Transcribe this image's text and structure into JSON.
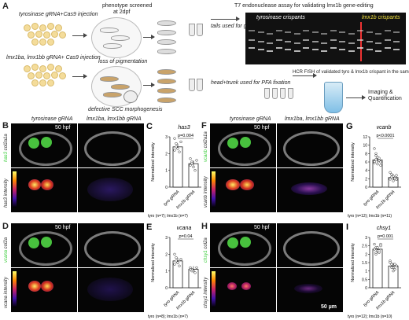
{
  "panel_A": {
    "letter": "A",
    "inj1": "tyrosinase gRNA+Cas9 injection",
    "inj2": "lmx1ba, lmx1bb gRNA+ Cas9 injection",
    "screen_line1": "phenotype screened",
    "screen_line2": "at 2dpf",
    "loss": "loss of pigmentation",
    "defective": "defective SCC morphogenesis",
    "t7": "T7 endonuclease assay for validating lmx1b gene-editing",
    "tails": "tails used for genomic DNA extraction",
    "head": "head+trunk used for PFA fixation",
    "gel_tyro": "tyrosinase crispants",
    "gel_lmx": "lmx1b crispants",
    "hcr": "HCR FISH of validated tyro & lmx1b crispant in the same tube",
    "imaging": "Imaging & Quantification"
  },
  "col_headers": {
    "tyro": "tyrosinase gRNA",
    "lmx": "lmx1ba, lmx1bb gRNA"
  },
  "hpf": "50 hpf",
  "scale_bar": "50 µm",
  "intensity_high": "High",
  "intensity_low": "Low",
  "image_panels": [
    {
      "letter": "B",
      "marker": "has3",
      "counter": "col2a1a",
      "ylabel": "has3 intensity"
    },
    {
      "letter": "D",
      "marker": "vcana",
      "counter": "col2a",
      "ylabel": "vcana intensity"
    },
    {
      "letter": "F",
      "marker": "vcanb",
      "counter": "col2a1a",
      "ylabel": "vcanb intensity"
    },
    {
      "letter": "H",
      "marker": "chsy1",
      "counter": "col2a",
      "ylabel": "chsy1 intensity"
    }
  ],
  "chart_data": [
    {
      "panel": "C",
      "type": "bar",
      "title": "has3",
      "ylabel": "Normalized intensity",
      "ylim": [
        0,
        3
      ],
      "yticks": [
        0,
        1,
        2,
        3
      ],
      "categories": [
        "tyro gRNA",
        "lmx1b gRNA"
      ],
      "values": [
        2.4,
        1.4
      ],
      "pvalue": "p=0.004",
      "points": [
        [
          2.9,
          2.6,
          2.3,
          2.1,
          2.7,
          2.2,
          2.4
        ],
        [
          1.7,
          1.5,
          1.2,
          1.0,
          1.6,
          1.3,
          1.4
        ]
      ],
      "n_note": "tyro (n=7); lmx1b (n=7)"
    },
    {
      "panel": "E",
      "type": "bar",
      "title": "vcana",
      "ylabel": "Normalized intensity",
      "ylim": [
        0,
        3
      ],
      "yticks": [
        0,
        1,
        2,
        3
      ],
      "categories": [
        "tyro gRNA",
        "lmx1b gRNA"
      ],
      "values": [
        1.6,
        1.1
      ],
      "pvalue": "p=0.04",
      "points": [
        [
          2.0,
          1.8,
          1.5,
          1.3,
          1.7,
          1.4,
          1.6,
          1.5
        ],
        [
          1.2,
          1.1,
          1.0,
          0.9,
          1.2,
          1.1,
          1.0
        ]
      ],
      "n_note": "tyro (n=8); lmx1b (n=7)"
    },
    {
      "panel": "G",
      "type": "bar",
      "title": "vcanb",
      "ylabel": "Normalized intensity",
      "ylim": [
        0,
        12
      ],
      "yticks": [
        0,
        2,
        4,
        6,
        8,
        10,
        12
      ],
      "categories": [
        "tyro gRNA",
        "lmx1b gRNA"
      ],
      "values": [
        6.5,
        2.3
      ],
      "pvalue": "p<0.0001",
      "points": [
        [
          9.2,
          8.0,
          7.1,
          6.3,
          6.0,
          5.8,
          6.6,
          5.5,
          6.9,
          5.2,
          6.1,
          7.5
        ],
        [
          3.5,
          3.0,
          2.6,
          2.2,
          1.8,
          2.1,
          2.4,
          1.5,
          2.0,
          2.8,
          1.9
        ]
      ],
      "n_note": "tyro (n=12); lmx1b (n=11)"
    },
    {
      "panel": "I",
      "type": "bar",
      "title": "chsy1",
      "ylabel": "Normalized intensity",
      "ylim": [
        0,
        3
      ],
      "yticks": [
        0,
        0.5,
        1,
        1.5,
        2,
        2.5,
        3
      ],
      "categories": [
        "tyro gRNA",
        "lmx1b gRNA"
      ],
      "values": [
        2.3,
        1.3
      ],
      "pvalue": "p=0.001",
      "points": [
        [
          2.6,
          2.4,
          2.2,
          2.1,
          2.5,
          2.3,
          2.0,
          2.4,
          2.2,
          2.6,
          2.3,
          2.1
        ],
        [
          1.6,
          1.4,
          1.2,
          1.1,
          1.3,
          1.5,
          1.2,
          1.0,
          1.4,
          1.3
        ]
      ],
      "n_note": "tyro (n=12); lmx1b (n=10)"
    }
  ]
}
